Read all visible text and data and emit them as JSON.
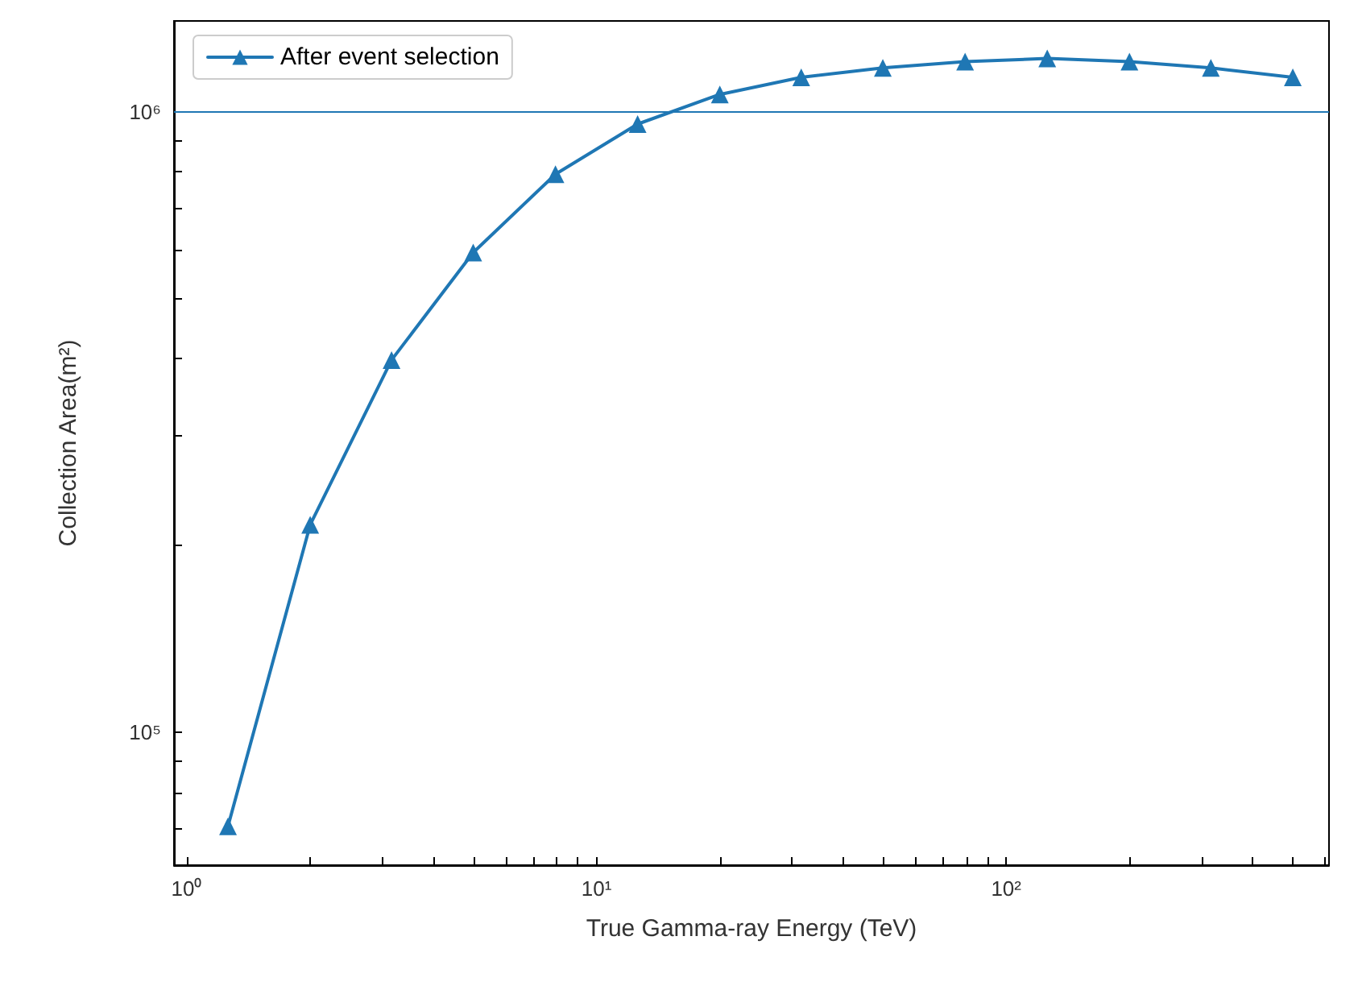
{
  "chart_data": {
    "type": "line",
    "xlabel": "True Gamma-ray Energy (TeV)",
    "ylabel": "Collection Area(m²)",
    "log": "xy",
    "grid": false,
    "legend": "top left",
    "marker": "triangle",
    "line_style": "solid",
    "x": [
      1.26,
      2,
      3.16,
      5,
      7.94,
      12.6,
      20,
      31.6,
      50,
      79.4,
      126,
      200,
      316,
      501
    ],
    "series": [
      {
        "name": "After event selection",
        "color": "#1f77b4",
        "values": [
          70600,
          216000,
          398000,
          593000,
          793000,
          955000,
          1066000,
          1136000,
          1176000,
          1204000,
          1218000,
          1204000,
          1176000,
          1136000
        ]
      }
    ],
    "xlim": [
      0.93,
      614
    ],
    "xticks": [
      {
        "value": 1,
        "label": "10⁰"
      },
      {
        "value": 2,
        "label": null
      },
      {
        "value": 3,
        "label": null
      },
      {
        "value": 4,
        "label": null
      },
      {
        "value": 5,
        "label": null
      },
      {
        "value": 6,
        "label": null
      },
      {
        "value": 7,
        "label": null
      },
      {
        "value": 8,
        "label": null
      },
      {
        "value": 9,
        "label": null
      },
      {
        "value": 10,
        "label": "10¹"
      },
      {
        "value": 20,
        "label": null
      },
      {
        "value": 30,
        "label": null
      },
      {
        "value": 40,
        "label": null
      },
      {
        "value": 50,
        "label": null
      },
      {
        "value": 60,
        "label": null
      },
      {
        "value": 70,
        "label": null
      },
      {
        "value": 80,
        "label": null
      },
      {
        "value": 90,
        "label": null
      },
      {
        "value": 100,
        "label": "10²"
      },
      {
        "value": 200,
        "label": null
      },
      {
        "value": 300,
        "label": null
      },
      {
        "value": 400,
        "label": null
      },
      {
        "value": 500,
        "label": null
      },
      {
        "value": 600,
        "label": null
      }
    ],
    "ylim": [
      61100,
      1400000
    ],
    "yticks": [
      {
        "value": 70000,
        "label": null
      },
      {
        "value": 80000,
        "label": null
      },
      {
        "value": 90000,
        "label": null
      },
      {
        "value": 100000,
        "label": "10⁵"
      },
      {
        "value": 200000,
        "label": null
      },
      {
        "value": 300000,
        "label": null
      },
      {
        "value": 400000,
        "label": null
      },
      {
        "value": 500000,
        "label": null
      },
      {
        "value": 600000,
        "label": null
      },
      {
        "value": 700000,
        "label": null
      },
      {
        "value": 800000,
        "label": null
      },
      {
        "value": 900000,
        "label": null
      },
      {
        "value": 1000000,
        "label": "10⁶"
      }
    ],
    "ref_lines": [
      {
        "axis": "y",
        "value": 1000000,
        "color": "#1f77b4",
        "line_style": "solid"
      }
    ]
  }
}
